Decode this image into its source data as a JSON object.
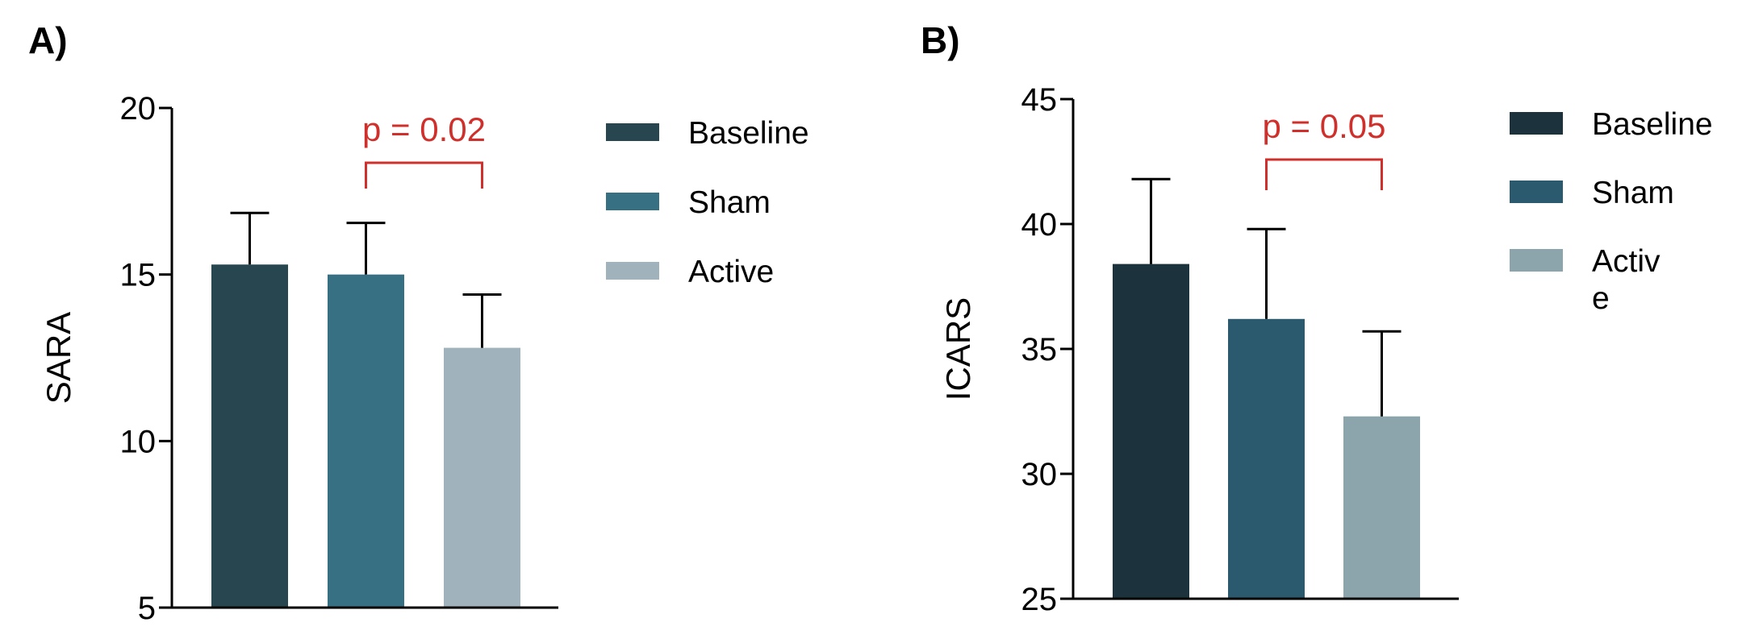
{
  "colors": {
    "axis": "#000000",
    "significance": "#d0302b",
    "panel_a": [
      "#27464f",
      "#387083",
      "#a0b3bc"
    ],
    "panel_b": [
      "#1c323c",
      "#2b5a6e",
      "#8ca5ad"
    ]
  },
  "chart_data": [
    {
      "panel_label": "A)",
      "type": "bar",
      "categories": [
        "Baseline",
        "Sham",
        "Active"
      ],
      "values": [
        15.3,
        15.0,
        12.8
      ],
      "error": [
        1.55,
        1.55,
        1.6
      ],
      "ylabel": "SARA",
      "xlabel": "",
      "ylim": [
        5,
        20
      ],
      "yticks": [
        "5",
        "10",
        "15",
        "20"
      ],
      "ytick_values": [
        5,
        10,
        15,
        20
      ],
      "legend": [
        "Baseline",
        "Sham",
        "Active"
      ],
      "legend_position": "right",
      "significance": {
        "label": "p = 0.02",
        "from": "Sham",
        "to": "Active"
      }
    },
    {
      "panel_label": "B)",
      "type": "bar",
      "categories": [
        "Baseline",
        "Sham",
        "Active"
      ],
      "values": [
        38.4,
        36.2,
        32.3
      ],
      "error": [
        3.4,
        3.6,
        3.4
      ],
      "ylabel": "ICARS",
      "xlabel": "",
      "ylim": [
        25,
        45
      ],
      "yticks": [
        "25",
        "30",
        "35",
        "40",
        "45"
      ],
      "ytick_values": [
        25,
        30,
        35,
        40,
        45
      ],
      "legend": [
        "Baseline",
        "Sham",
        "Activ\ne"
      ],
      "legend_position": "right",
      "significance": {
        "label": "p = 0.05",
        "from": "Sham",
        "to": "Active"
      }
    }
  ]
}
